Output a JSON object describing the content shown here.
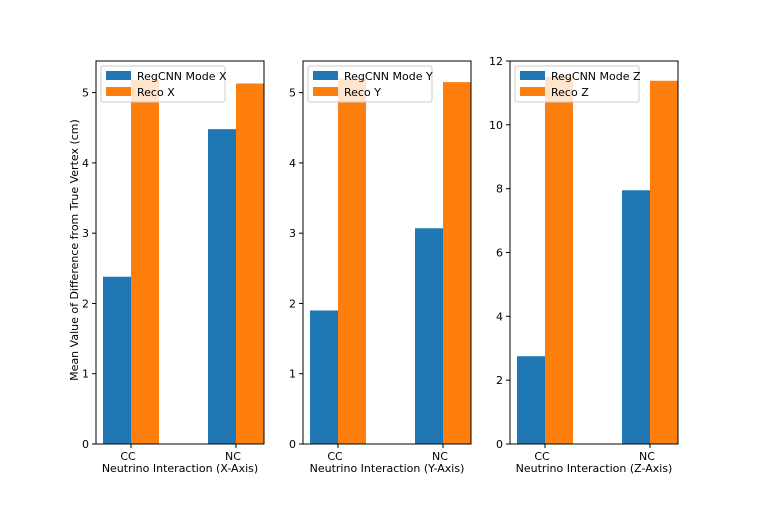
{
  "figure": {
    "ylabel": "Mean  Value of Difference from True Vertex (cm)"
  },
  "colors": {
    "regcnn": "#1f77b4",
    "reco": "#ff7f0e"
  },
  "chart_data": [
    {
      "type": "bar",
      "categories": [
        "CC",
        "NC"
      ],
      "series": [
        {
          "name": "RegCNN Mode X",
          "values": [
            2.38,
            4.48
          ]
        },
        {
          "name": "Reco X",
          "values": [
            5.18,
            5.13
          ]
        }
      ],
      "xlabel": "Neutrino Interaction (X-Axis)",
      "ylim": [
        0,
        5.45
      ],
      "yticks": [
        0,
        1,
        2,
        3,
        4,
        5
      ],
      "legend": "top-left"
    },
    {
      "type": "bar",
      "categories": [
        "CC",
        "NC"
      ],
      "series": [
        {
          "name": "RegCNN Mode Y",
          "values": [
            1.9,
            3.07
          ]
        },
        {
          "name": "Reco Y",
          "values": [
            5.2,
            5.15
          ]
        }
      ],
      "xlabel": "Neutrino Interaction (Y-Axis)",
      "ylim": [
        0,
        5.45
      ],
      "yticks": [
        0,
        1,
        2,
        3,
        4,
        5
      ],
      "legend": "top-left"
    },
    {
      "type": "bar",
      "categories": [
        "CC",
        "NC"
      ],
      "series": [
        {
          "name": "RegCNN Mode Z",
          "values": [
            2.75,
            7.95
          ]
        },
        {
          "name": "Reco Z",
          "values": [
            11.5,
            11.38
          ]
        }
      ],
      "xlabel": "Neutrino Interaction (Z-Axis)",
      "ylim": [
        0,
        12.0
      ],
      "yticks": [
        0,
        2,
        4,
        6,
        8,
        10,
        12
      ],
      "legend": "top-left"
    }
  ]
}
